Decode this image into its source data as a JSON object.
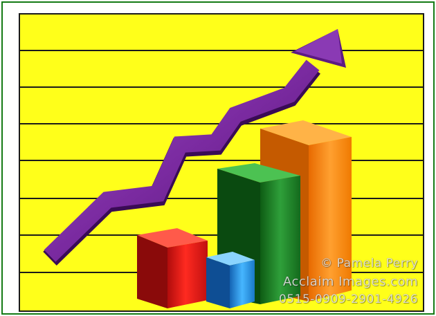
{
  "colors": {
    "frame_green": "#137a14",
    "background_yellow": "#ffff1a",
    "grid_line": "#1a1a1a",
    "arrow_purple": "#7a2aa0",
    "bar_red": "#e01818",
    "bar_blue": "#2a9ae6",
    "bar_green": "#1f8a28",
    "bar_orange": "#ff8a10"
  },
  "illustration": {
    "icon": "rising-trend-arrow-with-3d-bars",
    "bars": [
      {
        "color_key": "bar_red",
        "relative_height": 0.34
      },
      {
        "color_key": "bar_blue",
        "relative_height": 0.22
      },
      {
        "color_key": "bar_green",
        "relative_height": 0.66
      },
      {
        "color_key": "bar_orange",
        "relative_height": 0.92
      }
    ]
  },
  "watermark": {
    "line1": "© Pamela Perry",
    "line2": "Acclaim Images.com",
    "line3": "0515-0909-2901-4926"
  }
}
